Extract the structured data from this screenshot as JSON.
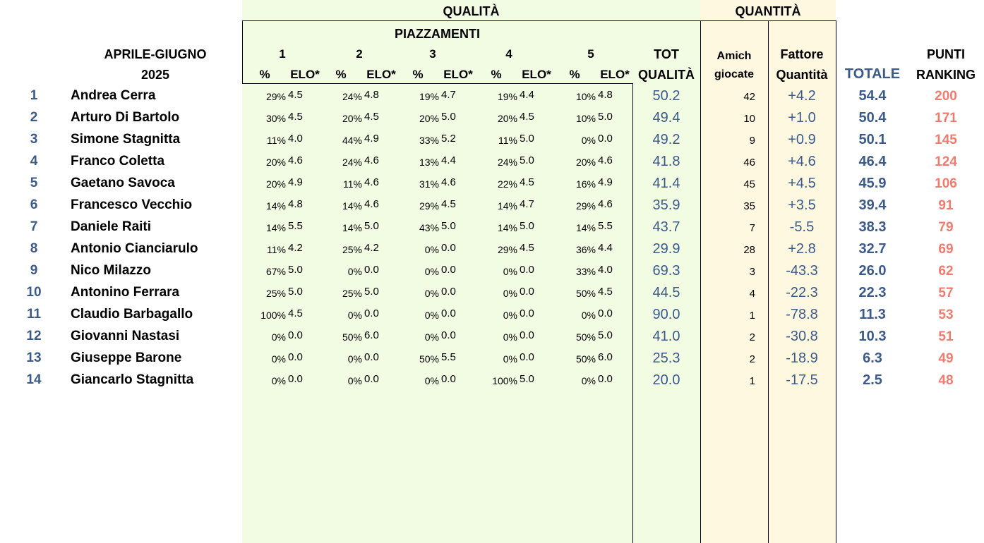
{
  "header": {
    "quality_title": "QUALITÀ",
    "quantity_title": "QUANTITÀ",
    "period_line1": "APRILE-GIUGNO",
    "period_line2": "2025",
    "placements_title": "PIAZZAMENTI",
    "placement_numbers": [
      "1",
      "2",
      "3",
      "4",
      "5"
    ],
    "pct_label": "%",
    "elo_label": "ELO*",
    "tot_line1": "TOT",
    "tot_line2": "QUALITÀ",
    "amich_line1": "Amich",
    "amich_line2": "giocate",
    "fattore_line1": "Fattore",
    "fattore_line2": "Quantità",
    "totale": "TOTALE",
    "punti_line1": "PUNTI",
    "punti_line2": "RANKING"
  },
  "rows": [
    {
      "rank": "1",
      "name": "Andrea Cerra",
      "p": [
        [
          "29%",
          "4.5"
        ],
        [
          "24%",
          "4.8"
        ],
        [
          "19%",
          "4.7"
        ],
        [
          "19%",
          "4.4"
        ],
        [
          "10%",
          "4.8"
        ]
      ],
      "tot": "50.2",
      "amich": "42",
      "fattore": "+4.2",
      "totale": "54.4",
      "punti": "200"
    },
    {
      "rank": "2",
      "name": "Arturo Di Bartolo",
      "p": [
        [
          "30%",
          "4.5"
        ],
        [
          "20%",
          "4.5"
        ],
        [
          "20%",
          "5.0"
        ],
        [
          "20%",
          "4.5"
        ],
        [
          "10%",
          "5.0"
        ]
      ],
      "tot": "49.4",
      "amich": "10",
      "fattore": "+1.0",
      "totale": "50.4",
      "punti": "171"
    },
    {
      "rank": "3",
      "name": "Simone Stagnitta",
      "p": [
        [
          "11%",
          "4.0"
        ],
        [
          "44%",
          "4.9"
        ],
        [
          "33%",
          "5.2"
        ],
        [
          "11%",
          "5.0"
        ],
        [
          "0%",
          "0.0"
        ]
      ],
      "tot": "49.2",
      "amich": "9",
      "fattore": "+0.9",
      "totale": "50.1",
      "punti": "145"
    },
    {
      "rank": "4",
      "name": "Franco Coletta",
      "p": [
        [
          "20%",
          "4.6"
        ],
        [
          "24%",
          "4.6"
        ],
        [
          "13%",
          "4.4"
        ],
        [
          "24%",
          "5.0"
        ],
        [
          "20%",
          "4.6"
        ]
      ],
      "tot": "41.8",
      "amich": "46",
      "fattore": "+4.6",
      "totale": "46.4",
      "punti": "124"
    },
    {
      "rank": "5",
      "name": "Gaetano Savoca",
      "p": [
        [
          "20%",
          "4.9"
        ],
        [
          "11%",
          "4.6"
        ],
        [
          "31%",
          "4.6"
        ],
        [
          "22%",
          "4.5"
        ],
        [
          "16%",
          "4.9"
        ]
      ],
      "tot": "41.4",
      "amich": "45",
      "fattore": "+4.5",
      "totale": "45.9",
      "punti": "106"
    },
    {
      "rank": "6",
      "name": "Francesco Vecchio",
      "p": [
        [
          "14%",
          "4.8"
        ],
        [
          "14%",
          "4.6"
        ],
        [
          "29%",
          "4.5"
        ],
        [
          "14%",
          "4.7"
        ],
        [
          "29%",
          "4.6"
        ]
      ],
      "tot": "35.9",
      "amich": "35",
      "fattore": "+3.5",
      "totale": "39.4",
      "punti": "91"
    },
    {
      "rank": "7",
      "name": "Daniele Raiti",
      "p": [
        [
          "14%",
          "5.5"
        ],
        [
          "14%",
          "5.0"
        ],
        [
          "43%",
          "5.0"
        ],
        [
          "14%",
          "5.0"
        ],
        [
          "14%",
          "5.5"
        ]
      ],
      "tot": "43.7",
      "amich": "7",
      "fattore": "-5.5",
      "totale": "38.3",
      "punti": "79"
    },
    {
      "rank": "8",
      "name": "Antonio Cianciarulo",
      "p": [
        [
          "11%",
          "4.2"
        ],
        [
          "25%",
          "4.2"
        ],
        [
          "0%",
          "0.0"
        ],
        [
          "29%",
          "4.5"
        ],
        [
          "36%",
          "4.4"
        ]
      ],
      "tot": "29.9",
      "amich": "28",
      "fattore": "+2.8",
      "totale": "32.7",
      "punti": "69"
    },
    {
      "rank": "9",
      "name": "Nico Milazzo",
      "p": [
        [
          "67%",
          "5.0"
        ],
        [
          "0%",
          "0.0"
        ],
        [
          "0%",
          "0.0"
        ],
        [
          "0%",
          "0.0"
        ],
        [
          "33%",
          "4.0"
        ]
      ],
      "tot": "69.3",
      "amich": "3",
      "fattore": "-43.3",
      "totale": "26.0",
      "punti": "62"
    },
    {
      "rank": "10",
      "name": "Antonino Ferrara",
      "p": [
        [
          "25%",
          "5.0"
        ],
        [
          "25%",
          "5.0"
        ],
        [
          "0%",
          "0.0"
        ],
        [
          "0%",
          "0.0"
        ],
        [
          "50%",
          "4.5"
        ]
      ],
      "tot": "44.5",
      "amich": "4",
      "fattore": "-22.3",
      "totale": "22.3",
      "punti": "57"
    },
    {
      "rank": "11",
      "name": "Claudio Barbagallo",
      "p": [
        [
          "100%",
          "4.5"
        ],
        [
          "0%",
          "0.0"
        ],
        [
          "0%",
          "0.0"
        ],
        [
          "0%",
          "0.0"
        ],
        [
          "0%",
          "0.0"
        ]
      ],
      "tot": "90.0",
      "amich": "1",
      "fattore": "-78.8",
      "totale": "11.3",
      "punti": "53"
    },
    {
      "rank": "12",
      "name": "Giovanni Nastasi",
      "p": [
        [
          "0%",
          "0.0"
        ],
        [
          "50%",
          "6.0"
        ],
        [
          "0%",
          "0.0"
        ],
        [
          "0%",
          "0.0"
        ],
        [
          "50%",
          "5.0"
        ]
      ],
      "tot": "41.0",
      "amich": "2",
      "fattore": "-30.8",
      "totale": "10.3",
      "punti": "51"
    },
    {
      "rank": "13",
      "name": "Giuseppe Barone",
      "p": [
        [
          "0%",
          "0.0"
        ],
        [
          "0%",
          "0.0"
        ],
        [
          "50%",
          "5.5"
        ],
        [
          "0%",
          "0.0"
        ],
        [
          "50%",
          "6.0"
        ]
      ],
      "tot": "25.3",
      "amich": "2",
      "fattore": "-18.9",
      "totale": "6.3",
      "punti": "49"
    },
    {
      "rank": "14",
      "name": "Giancarlo Stagnitta",
      "p": [
        [
          "0%",
          "0.0"
        ],
        [
          "0%",
          "0.0"
        ],
        [
          "0%",
          "0.0"
        ],
        [
          "100%",
          "5.0"
        ],
        [
          "0%",
          "0.0"
        ]
      ],
      "tot": "20.0",
      "amich": "1",
      "fattore": "-17.5",
      "totale": "2.5",
      "punti": "48"
    }
  ],
  "colors": {
    "quality_bg": "#f2fce3",
    "quantity_bg": "#fff8e0",
    "blue_text": "#3b5a8a",
    "salmon_text": "#f07b6e"
  }
}
